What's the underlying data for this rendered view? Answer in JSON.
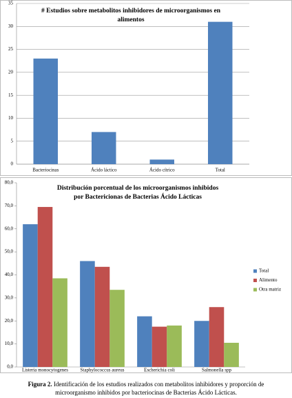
{
  "chart_data": [
    {
      "type": "bar",
      "title": [
        "# Estudios sobre metabolitos inhibidores de microorganismos en",
        "alimentos"
      ],
      "categories": [
        "Bacteriocinas",
        "Ácido láctico",
        "Ácido cítrico",
        "Total"
      ],
      "values": [
        23,
        7,
        1,
        31
      ],
      "color": "#4f81bd",
      "ylim": [
        0,
        35
      ],
      "yticks": [
        0,
        5,
        10,
        15,
        20,
        25,
        30,
        35
      ],
      "grid": true
    },
    {
      "type": "grouped-bar",
      "title": [
        "Distribución porcentual de los microorganismos inhibidos",
        "por Bactericionas de Bacterias Ácido Lácticas"
      ],
      "categories": [
        "Listeria monocytogenes",
        "Staphylococcus aureus",
        "Escherichia coli",
        "Salmonella spp"
      ],
      "series": [
        {
          "name": "Total",
          "color": "#4f81bd",
          "values": [
            62,
            46,
            22,
            20
          ]
        },
        {
          "name": "Alimento",
          "color": "#c0504d",
          "values": [
            69.5,
            43.5,
            17.5,
            26
          ]
        },
        {
          "name": "Otra matriz",
          "color": "#9bbb59",
          "values": [
            38.5,
            33.5,
            18,
            10.5
          ]
        }
      ],
      "ylim": [
        0,
        80
      ],
      "yticks": [
        {
          "value": 0,
          "label": "0,0"
        },
        {
          "value": 10,
          "label": "10,0"
        },
        {
          "value": 20,
          "label": "20,0"
        },
        {
          "value": 30,
          "label": "30,0"
        },
        {
          "value": 40,
          "label": "40,0"
        },
        {
          "value": 50,
          "label": "50,0"
        },
        {
          "value": 60,
          "label": "60,0"
        },
        {
          "value": 70,
          "label": "70,0"
        },
        {
          "value": 80,
          "label": "80,0"
        }
      ],
      "grid": false,
      "legend": "right"
    }
  ],
  "caption": {
    "label": "Figura 2.",
    "lines": [
      "Identificación de los estudios realizados con metabolitos inhibidores y proporción de",
      "microorganismo inhibidos por bacteriocinas de Bacterias Ácido Lácticas."
    ]
  }
}
